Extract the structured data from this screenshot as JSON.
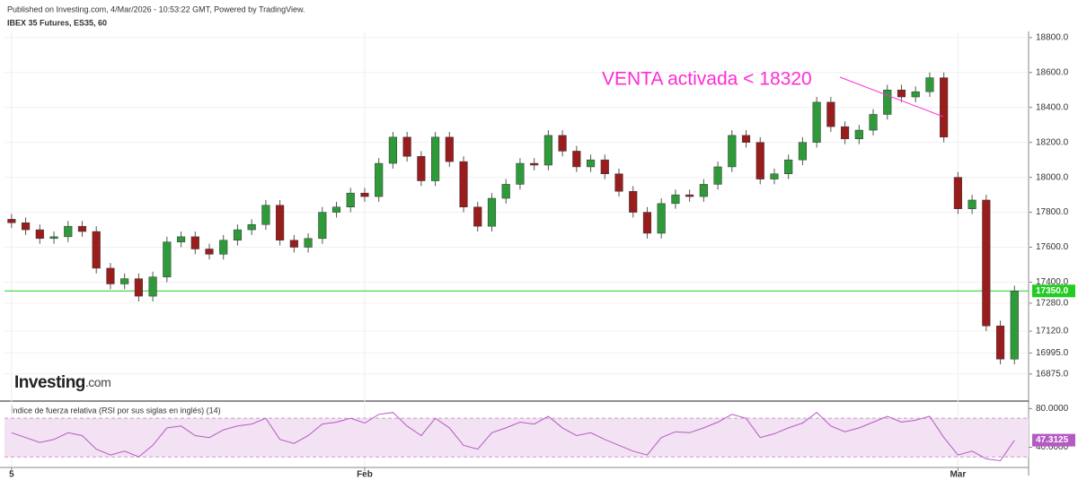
{
  "header": {
    "published": "Published on Investing.com, 4/Mar/2026 - 10:53:22 GMT, Powered by TradingView.",
    "symbol": "IBEX 35 Futures, ES35, 60"
  },
  "logo": {
    "name": "Investing",
    "suffix": ".com"
  },
  "chart_data": {
    "type": "candlestick",
    "candles": {
      "open": [
        17760,
        17740,
        17700,
        17650,
        17660,
        17720,
        17690,
        17480,
        17390,
        17420,
        17320,
        17430,
        17630,
        17660,
        17590,
        17560,
        17640,
        17700,
        17730,
        17840,
        17640,
        17600,
        17650,
        17800,
        17830,
        17910,
        17890,
        18080,
        18230,
        18120,
        17980,
        18230,
        18090,
        17830,
        17720,
        17880,
        17960,
        18080,
        18070,
        18240,
        18150,
        18060,
        18100,
        18020,
        17920,
        17800,
        17680,
        17850,
        17900,
        17890,
        17960,
        18060,
        18240,
        18200,
        17990,
        18020,
        18100,
        18200,
        18430,
        18290,
        18220,
        18270,
        18360,
        18500,
        18460,
        18490,
        18570,
        18000,
        17820,
        17870,
        17150,
        16960
      ],
      "high": [
        17790,
        17770,
        17730,
        17690,
        17750,
        17750,
        17720,
        17510,
        17450,
        17450,
        17460,
        17660,
        17690,
        17690,
        17620,
        17670,
        17730,
        17760,
        17870,
        17870,
        17670,
        17680,
        17830,
        17860,
        17940,
        17940,
        18110,
        18260,
        18260,
        18150,
        18260,
        18260,
        18120,
        17860,
        17910,
        17990,
        18110,
        18110,
        18270,
        18270,
        18180,
        18130,
        18130,
        18050,
        17950,
        17830,
        17880,
        17930,
        17930,
        17990,
        18090,
        18270,
        18270,
        18230,
        18050,
        18130,
        18230,
        18460,
        18460,
        18320,
        18300,
        18390,
        18530,
        18530,
        18520,
        18600,
        18600,
        18030,
        17900,
        17900,
        17180,
        17380
      ],
      "low": [
        17710,
        17670,
        17620,
        17620,
        17630,
        17660,
        17450,
        17360,
        17360,
        17290,
        17290,
        17400,
        17600,
        17560,
        17530,
        17530,
        17610,
        17670,
        17700,
        17610,
        17570,
        17570,
        17620,
        17770,
        17800,
        17860,
        17860,
        18050,
        18090,
        17950,
        17950,
        18060,
        17800,
        17690,
        17690,
        17850,
        17930,
        18040,
        18040,
        18120,
        18030,
        18030,
        17990,
        17890,
        17770,
        17650,
        17650,
        17820,
        17860,
        17860,
        17930,
        18030,
        18170,
        17960,
        17960,
        17990,
        18070,
        18170,
        18260,
        18190,
        18190,
        18240,
        18330,
        18430,
        18430,
        18460,
        18200,
        17790,
        17790,
        17120,
        16930,
        16930
      ],
      "close": [
        17740,
        17700,
        17650,
        17660,
        17720,
        17690,
        17480,
        17390,
        17420,
        17320,
        17430,
        17630,
        17660,
        17590,
        17560,
        17640,
        17700,
        17730,
        17840,
        17640,
        17600,
        17650,
        17800,
        17830,
        17910,
        17890,
        18080,
        18230,
        18120,
        17980,
        18230,
        18090,
        17830,
        17720,
        17880,
        17960,
        18080,
        18070,
        18240,
        18150,
        18060,
        18100,
        18020,
        17920,
        17800,
        17680,
        17850,
        17900,
        17890,
        17960,
        18060,
        18240,
        18200,
        17990,
        18020,
        18100,
        18200,
        18430,
        18290,
        18220,
        18270,
        18360,
        18500,
        18460,
        18490,
        18570,
        18230,
        17820,
        17870,
        17150,
        16960,
        17350
      ]
    },
    "colors": {
      "up": "#2e9a3a",
      "down": "#9a1d1d",
      "wick": "#555555"
    },
    "xlim": [
      -0.5,
      72
    ],
    "xticks": [
      {
        "value": 0,
        "label": "5"
      },
      {
        "value": 25,
        "label": "Feb"
      },
      {
        "value": 67,
        "label": "Mar"
      }
    ],
    "ylim": [
      16730,
      18835
    ],
    "yticks": [
      {
        "value": 18800,
        "label": "18800.0"
      },
      {
        "value": 18600,
        "label": "18600.0"
      },
      {
        "value": 18400,
        "label": "18400.0"
      },
      {
        "value": 18200,
        "label": "18200.0"
      },
      {
        "value": 18000,
        "label": "18000.0"
      },
      {
        "value": 17800,
        "label": "17800.0"
      },
      {
        "value": 17600,
        "label": "17600.0"
      },
      {
        "value": 17400,
        "label": "17400.0"
      },
      {
        "value": 17280,
        "label": "17280.0"
      },
      {
        "value": 17120,
        "label": "17120.0"
      },
      {
        "value": 16995,
        "label": "16995.0"
      },
      {
        "value": 16875,
        "label": "16875.0"
      }
    ],
    "grid": true,
    "last_price": {
      "value": 17350,
      "label": "17350.0",
      "color": "#22cc22"
    },
    "annotation": {
      "text": "VENTA activada < 18320",
      "color": "#ff2bd6"
    },
    "rsi": {
      "title": "Índice de fuerza relativa (RSI por sus siglas en inglés) (14)",
      "values": [
        55,
        50,
        45,
        48,
        55,
        52,
        38,
        32,
        36,
        30,
        42,
        60,
        62,
        52,
        50,
        58,
        62,
        64,
        70,
        48,
        44,
        52,
        64,
        66,
        70,
        65,
        74,
        76,
        62,
        52,
        70,
        60,
        42,
        38,
        55,
        60,
        66,
        64,
        72,
        60,
        52,
        55,
        48,
        42,
        36,
        32,
        50,
        56,
        55,
        60,
        66,
        74,
        70,
        50,
        54,
        60,
        65,
        76,
        62,
        56,
        60,
        66,
        72,
        66,
        68,
        72,
        50,
        32,
        36,
        28,
        26,
        47.3125
      ],
      "ylim": [
        20,
        85
      ],
      "yticks": [
        {
          "value": 80,
          "label": "80.0000"
        },
        {
          "value": 40,
          "label": "40.0000"
        }
      ],
      "band": [
        30,
        70
      ],
      "color": "#b45ac4",
      "last": 47.3125
    }
  }
}
